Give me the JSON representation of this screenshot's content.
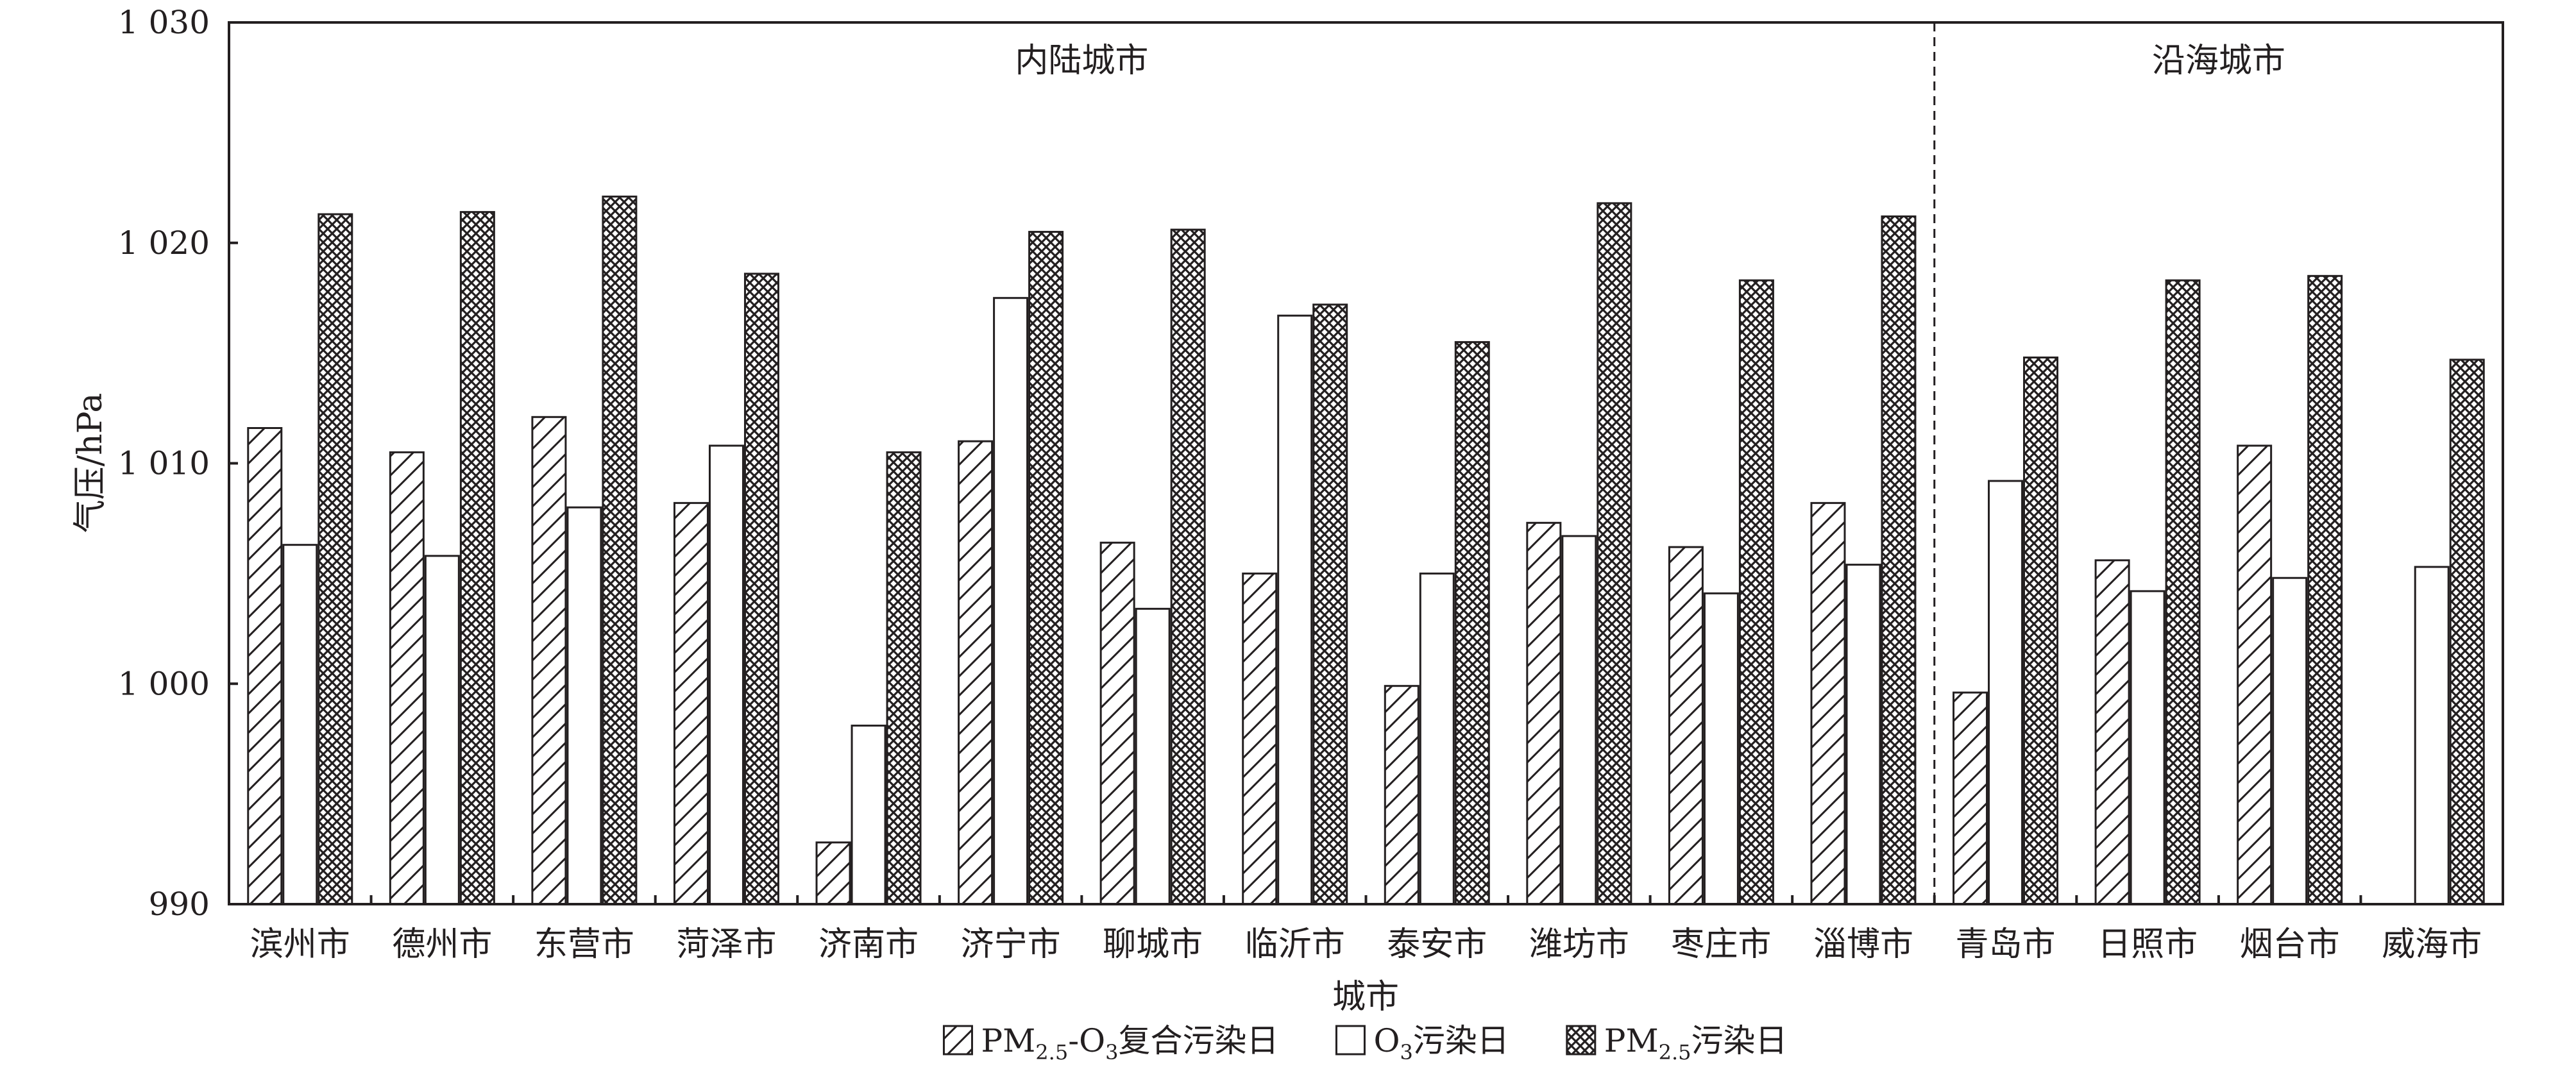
{
  "chart_data": {
    "type": "bar",
    "title": "",
    "xlabel": "城市",
    "ylabel": "气压/hPa",
    "ylim": [
      990,
      1030
    ],
    "yticks": [
      990,
      1000,
      1010,
      1020,
      1030
    ],
    "ytick_labels": [
      "990",
      "1 000",
      "1 010",
      "1 020",
      "1 030"
    ],
    "grid": false,
    "legend_position": "bottom",
    "categories": [
      "滨州市",
      "德州市",
      "东营市",
      "菏泽市",
      "济南市",
      "济宁市",
      "聊城市",
      "临沂市",
      "泰安市",
      "潍坊市",
      "枣庄市",
      "淄博市",
      "青岛市",
      "日照市",
      "烟台市",
      "威海市"
    ],
    "groups": [
      {
        "label": "内陆城市",
        "start_index": 0,
        "end_index": 11
      },
      {
        "label": "沿海城市",
        "start_index": 12,
        "end_index": 15
      }
    ],
    "series": [
      {
        "name": "PM2.5-O3复合污染日",
        "legend_parts": [
          {
            "text": "PM",
            "sub": false
          },
          {
            "text": "2.5",
            "sub": true
          },
          {
            "text": "-O",
            "sub": false
          },
          {
            "text": "3",
            "sub": true
          },
          {
            "text": "复合污染日",
            "sub": false
          }
        ],
        "pattern": "diagonal-hatch",
        "values": [
          1011.6,
          1010.5,
          1012.1,
          1008.2,
          992.8,
          1011.0,
          1006.4,
          1005.0,
          999.9,
          1007.3,
          1006.2,
          1008.2,
          999.6,
          1005.6,
          1010.8,
          null
        ]
      },
      {
        "name": "O3污染日",
        "legend_parts": [
          {
            "text": "O",
            "sub": false
          },
          {
            "text": "3",
            "sub": true
          },
          {
            "text": "污染日",
            "sub": false
          }
        ],
        "pattern": "empty",
        "values": [
          1006.3,
          1005.8,
          1008.0,
          1010.8,
          998.1,
          1017.5,
          1003.4,
          1016.7,
          1005.0,
          1006.7,
          1004.1,
          1005.4,
          1009.2,
          1004.2,
          1004.8,
          1005.3
        ]
      },
      {
        "name": "PM2.5污染日",
        "legend_parts": [
          {
            "text": "PM",
            "sub": false
          },
          {
            "text": "2.5",
            "sub": true
          },
          {
            "text": "污染日",
            "sub": false
          }
        ],
        "pattern": "cross-hatch",
        "values": [
          1021.3,
          1021.4,
          1022.1,
          1018.6,
          1010.5,
          1020.5,
          1020.6,
          1017.2,
          1015.5,
          1021.8,
          1018.3,
          1021.2,
          1014.8,
          1018.3,
          1018.5,
          1014.7
        ]
      }
    ],
    "colors": {
      "ink": "#231f20",
      "background": "#ffffff"
    }
  }
}
